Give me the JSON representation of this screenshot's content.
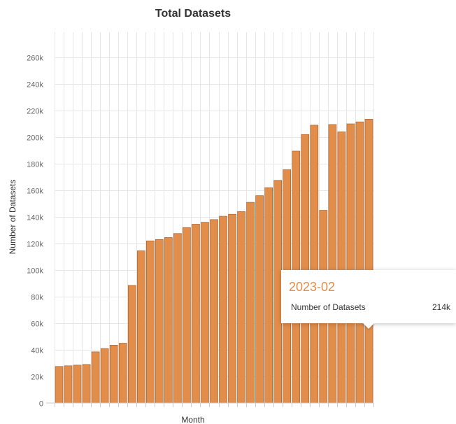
{
  "chart_data": {
    "type": "bar",
    "title": "Total Datasets",
    "xlabel": "Month",
    "ylabel": "Number of Datasets",
    "ylim": [
      0,
      270000
    ],
    "yticks": [
      0,
      20000,
      40000,
      60000,
      80000,
      100000,
      120000,
      140000,
      160000,
      180000,
      200000,
      220000,
      240000,
      260000
    ],
    "ytick_labels": [
      "0",
      "20k",
      "40k",
      "60k",
      "80k",
      "100k",
      "120k",
      "140k",
      "160k",
      "180k",
      "200k",
      "220k",
      "240k",
      "260k"
    ],
    "grid": true,
    "series": [
      {
        "name": "Number of Datasets",
        "color": "#e38d4a",
        "values": [
          27500,
          28000,
          28500,
          29000,
          38500,
          41000,
          43500,
          45000,
          88500,
          114500,
          122000,
          123000,
          124500,
          127500,
          132000,
          134500,
          136000,
          138000,
          140500,
          142000,
          144000,
          151000,
          156000,
          162000,
          167500,
          175500,
          189500,
          202000,
          209000,
          145000,
          209500,
          204000,
          210000,
          211500,
          213500
        ]
      }
    ]
  },
  "tooltip": {
    "header": "2023-02",
    "series_label": "Number of Datasets",
    "value": "214k"
  }
}
